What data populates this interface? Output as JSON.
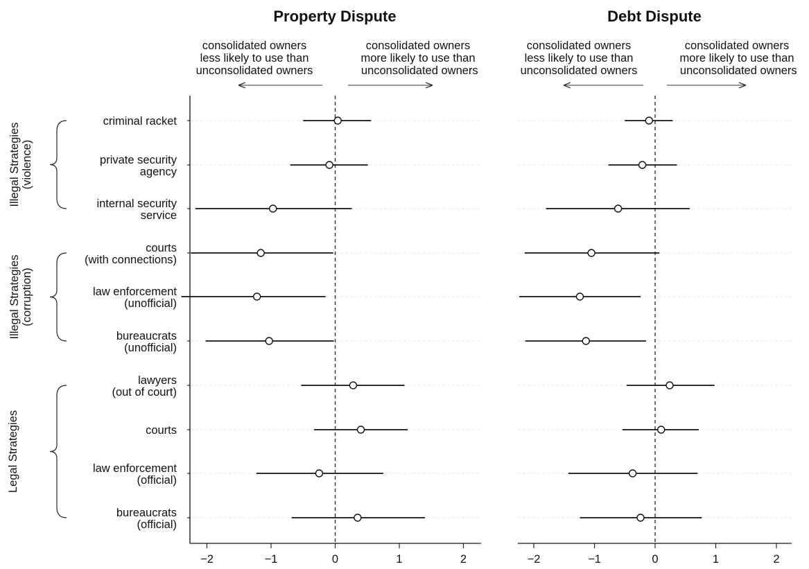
{
  "chart_data": [
    {
      "type": "scatter",
      "title": "Property Dispute",
      "annotations": {
        "left": [
          "consolidated owners",
          "less likely to use than",
          "unconsolidated owners"
        ],
        "right": [
          "consolidated owners",
          "more likely to use than",
          " unconsolidated owners"
        ]
      },
      "xlim": [
        -2.3,
        2.3
      ],
      "xticks": [
        -2,
        -1,
        0,
        1,
        2
      ],
      "xtick_labels": [
        "−2",
        "−1",
        "0",
        "1",
        "2"
      ],
      "reference_line_x": 0,
      "grid": "horizontal dashed",
      "categories": [
        [
          "criminal racket"
        ],
        [
          "private security",
          "agency"
        ],
        [
          "internal security",
          "service"
        ],
        [
          "courts",
          "(with connections)"
        ],
        [
          "law enforcement",
          "(unofficial)"
        ],
        [
          "bureaucrats",
          "(unofficial)"
        ],
        [
          "lawyers",
          "(out of court)"
        ],
        [
          "courts"
        ],
        [
          "law enforcement",
          "(official)"
        ],
        [
          "bureaucrats",
          "(official)"
        ]
      ],
      "groups": [
        {
          "label": [
            "Illegal Strategies",
            "(violence)"
          ],
          "from": 0,
          "to": 2
        },
        {
          "label": [
            "Illegal Strategies",
            "(corruption)"
          ],
          "from": 3,
          "to": 5
        },
        {
          "label": [
            "Legal Strategies"
          ],
          "from": 6,
          "to": 9
        }
      ],
      "estimates": [
        0.04,
        -0.09,
        -0.97,
        -1.16,
        -1.22,
        -1.03,
        0.28,
        0.4,
        -0.25,
        0.35
      ],
      "ci_low": [
        -0.5,
        -0.7,
        -2.18,
        -2.25,
        -2.4,
        -2.02,
        -0.53,
        -0.33,
        -1.23,
        -0.68
      ],
      "ci_high": [
        0.56,
        0.51,
        0.26,
        -0.03,
        -0.15,
        -0.02,
        1.08,
        1.13,
        0.75,
        1.4
      ]
    },
    {
      "type": "scatter",
      "title": "Debt Dispute",
      "annotations": {
        "left": [
          "consolidated owners",
          "less likely to use than",
          "unconsolidated owners"
        ],
        "right": [
          "consolidated owners",
          "more likely to use than",
          " unconsolidated owners"
        ]
      },
      "xlim": [
        -2.3,
        2.3
      ],
      "xticks": [
        -2,
        -1,
        0,
        1,
        2
      ],
      "xtick_labels": [
        "−2",
        "−1",
        "0",
        "1",
        "2"
      ],
      "reference_line_x": 0,
      "grid": "horizontal dashed",
      "estimates": [
        -0.1,
        -0.21,
        -0.61,
        -1.05,
        -1.24,
        -1.14,
        0.24,
        0.1,
        -0.37,
        -0.24
      ],
      "ci_low": [
        -0.5,
        -0.77,
        -1.8,
        -2.15,
        -2.24,
        -2.14,
        -0.47,
        -0.54,
        -1.43,
        -1.24
      ],
      "ci_high": [
        0.29,
        0.36,
        0.57,
        0.07,
        -0.24,
        -0.15,
        0.98,
        0.72,
        0.7,
        0.77
      ]
    }
  ]
}
